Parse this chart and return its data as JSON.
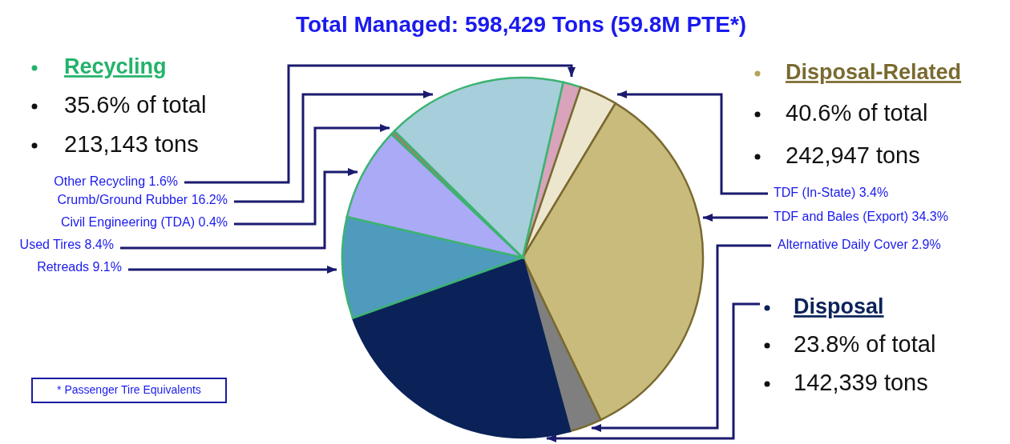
{
  "chart_data": {
    "type": "pie",
    "title": "Total Managed: 598,429 Tons (59.8M PTE*)",
    "categories": [
      "Other Recycling 1.6%",
      "TDF (In-State) 3.4%",
      "TDF and Bales (Export) 34.3%",
      "Alternative Daily Cover 2.9%",
      null,
      "Retreads 9.1%",
      "Used Tires 8.4%",
      "Civil Engineering (TDA) 0.4%",
      "Crumb/Ground Rubber 16.2%"
    ],
    "values": [
      1.6,
      3.4,
      34.3,
      2.9,
      23.8,
      9.1,
      8.4,
      0.4,
      16.2
    ],
    "colors": [
      "#d8a3bb",
      "#ede6cf",
      "#c9bb7c",
      "#7f7f7f",
      "#0b2259",
      "#4f9bbd",
      "#aaaaf6",
      "#9c8070",
      "#a7cedb"
    ],
    "annotations": [
      "Recycling",
      "35.6% of total",
      "213,143 tons",
      "Disposal-Related",
      "40.6% of total",
      "242,947 tons",
      "Disposal",
      "23.8% of total",
      "142,339 tons",
      "* Passenger Tire Equivalents"
    ]
  }
}
